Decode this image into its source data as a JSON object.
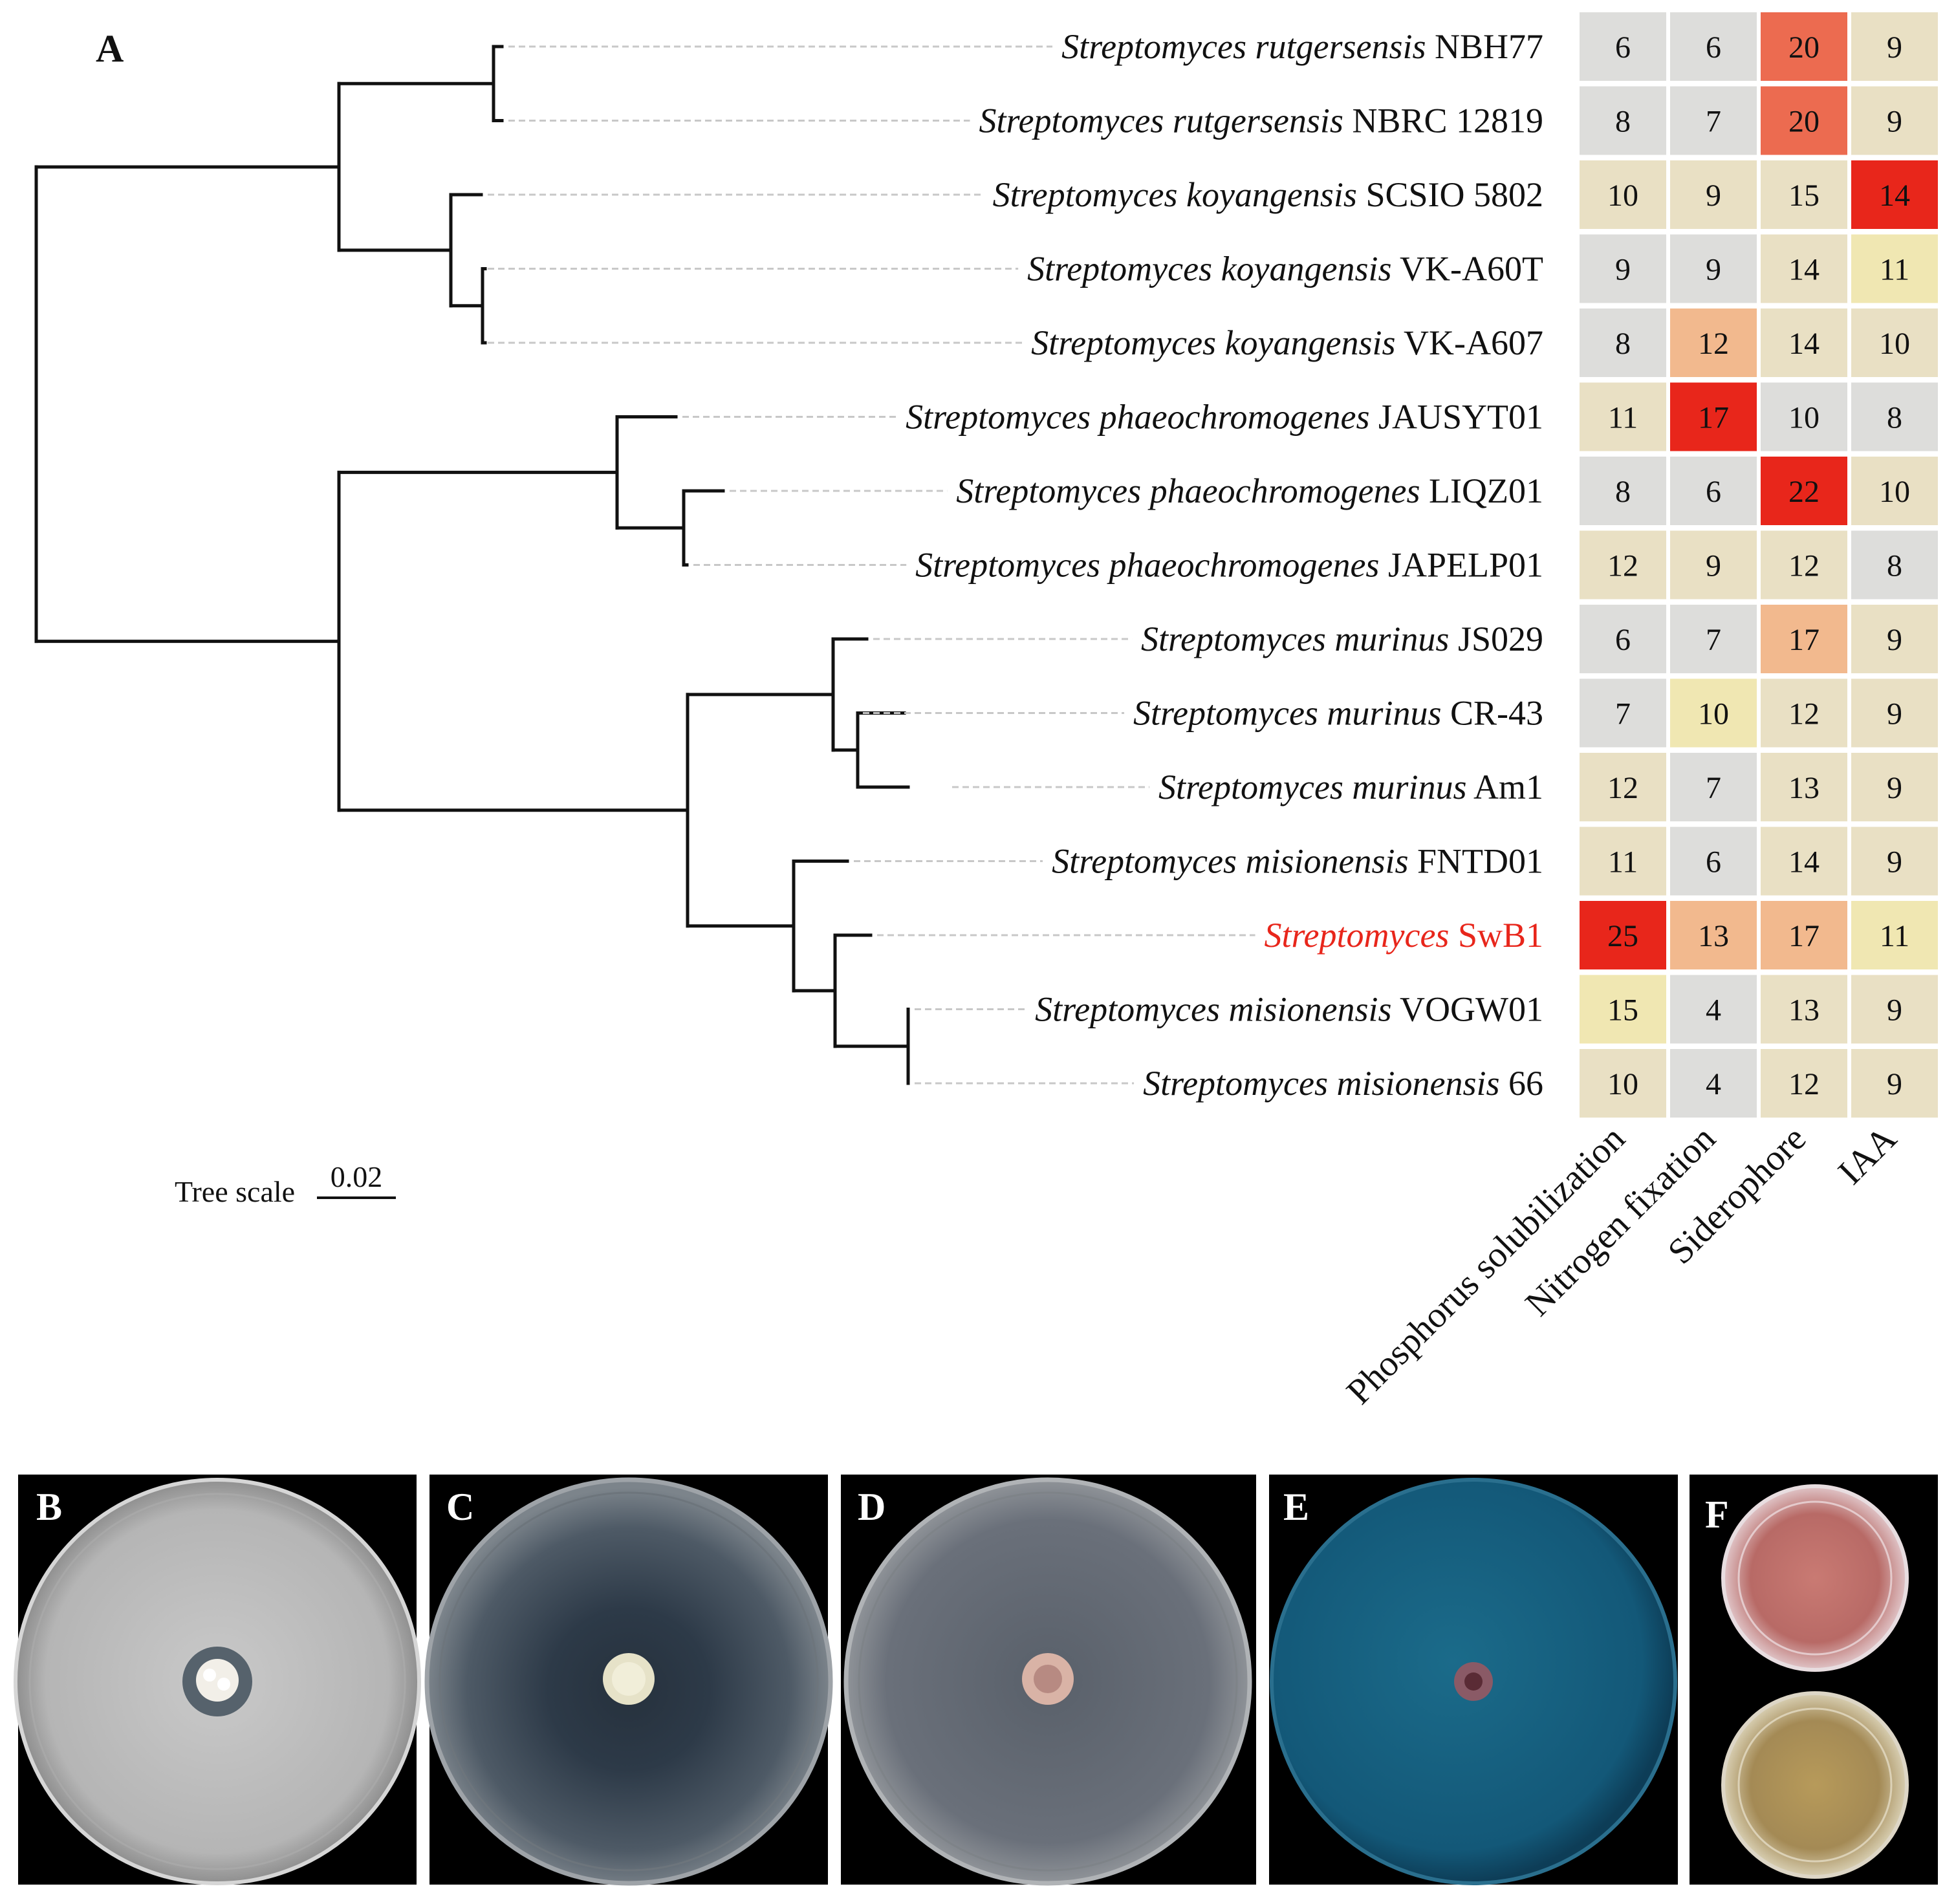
{
  "panel_a_label": "A",
  "taxa": [
    {
      "genus": "Streptomyces",
      "species": "rutgersensis",
      "strain": "NBH77",
      "highlight": false
    },
    {
      "genus": "Streptomyces",
      "species": "rutgersensis",
      "strain": "NBRC 12819",
      "highlight": false
    },
    {
      "genus": "Streptomyces",
      "species": "koyangensis",
      "strain": "SCSIO 5802",
      "highlight": false
    },
    {
      "genus": "Streptomyces",
      "species": "koyangensis",
      "strain": "VK-A60T",
      "highlight": false
    },
    {
      "genus": "Streptomyces",
      "species": "koyangensis",
      "strain": "VK-A607",
      "highlight": false
    },
    {
      "genus": "Streptomyces",
      "species": "phaeochromogenes",
      "strain": "JAUSYT01",
      "highlight": false
    },
    {
      "genus": "Streptomyces",
      "species": "phaeochromogenes",
      "strain": "LIQZ01",
      "highlight": false
    },
    {
      "genus": "Streptomyces",
      "species": "phaeochromogenes",
      "strain": "JAPELP01",
      "highlight": false
    },
    {
      "genus": "Streptomyces",
      "species": "murinus",
      "strain": "JS029",
      "highlight": false
    },
    {
      "genus": "Streptomyces",
      "species": "murinus",
      "strain": "CR-43",
      "highlight": false
    },
    {
      "genus": "Streptomyces",
      "species": "murinus",
      "strain": "Am1",
      "highlight": false
    },
    {
      "genus": "Streptomyces",
      "species": "misionensis",
      "strain": "FNTD01",
      "highlight": false
    },
    {
      "genus": "Streptomyces",
      "species": "",
      "strain": "SwB1",
      "highlight": true
    },
    {
      "genus": "Streptomyces",
      "species": "misionensis",
      "strain": "VOGW01",
      "highlight": false
    },
    {
      "genus": "Streptomyces",
      "species": "misionensis",
      "strain": "66",
      "highlight": false
    }
  ],
  "heatmap": {
    "columns": [
      "Phosphorus solubilization",
      "Nitrogen fixation",
      "Siderophore",
      "IAA"
    ],
    "values": [
      [
        6,
        6,
        20,
        9
      ],
      [
        8,
        7,
        20,
        9
      ],
      [
        10,
        9,
        15,
        14
      ],
      [
        9,
        9,
        14,
        11
      ],
      [
        8,
        12,
        14,
        10
      ],
      [
        11,
        17,
        10,
        8
      ],
      [
        8,
        6,
        22,
        10
      ],
      [
        12,
        9,
        12,
        8
      ],
      [
        6,
        7,
        17,
        9
      ],
      [
        7,
        10,
        12,
        9
      ],
      [
        12,
        7,
        13,
        9
      ],
      [
        11,
        6,
        14,
        9
      ],
      [
        25,
        13,
        17,
        11
      ],
      [
        15,
        4,
        13,
        9
      ],
      [
        10,
        4,
        12,
        9
      ]
    ]
  },
  "tree_scale": {
    "label": "Tree scale",
    "value": "0.02"
  },
  "tree_topology": "((((NBH77,NBRC 12819),(SCSIO 5802,(VK-A60T,VK-A607))),((JAUSYT01,(LIQZ01,JAPELP01)),((JS029,(CR-43,Am1)),(FNTD01,(SwB1,(VOGW01,66)))))))",
  "colors": {
    "highlight_text": "#e8261b",
    "grey_cell": "#dddddb",
    "cream_cell": "#e9e0c4",
    "yellow_cell": "#f0e7b2",
    "peach_cell": "#f2b98e",
    "coral_cell": "#ec6b50",
    "red_cell": "#e8261b"
  },
  "photo_panels": [
    {
      "letter": "B",
      "description_icon": "white-agar-plate-with-halo-icon"
    },
    {
      "letter": "C",
      "description_icon": "dark-agar-plate-with-colony-icon"
    },
    {
      "letter": "D",
      "description_icon": "clear-agar-plate-with-pink-colony-icon"
    },
    {
      "letter": "E",
      "description_icon": "blue-cas-agar-plate-icon"
    },
    {
      "letter": "F",
      "description_icon": "two-wells-pink-and-amber-icon"
    }
  ]
}
